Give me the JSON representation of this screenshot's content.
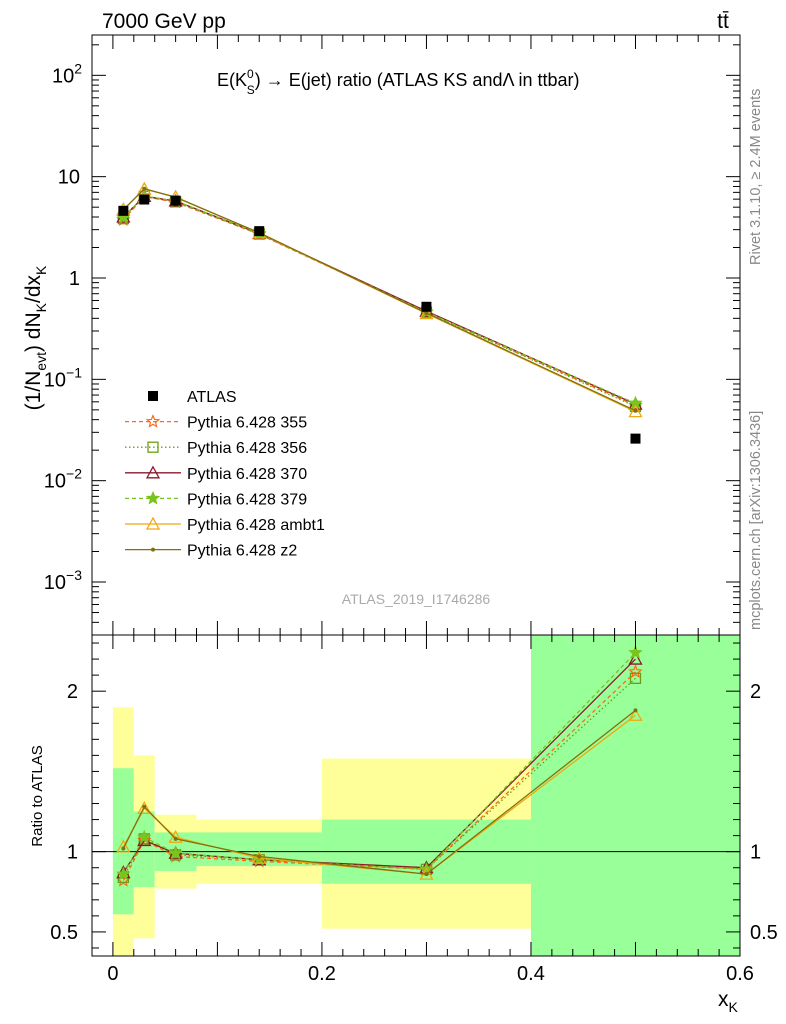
{
  "header": {
    "energy": "7000 GeV pp",
    "process": "tt̄"
  },
  "side_labels": {
    "rivet": "Rivet 3.1.10, ≥ 2.4M events",
    "mcplots": "mcplots.cern.ch [arXiv:1306.3436]"
  },
  "chart_data": [
    {
      "type": "line",
      "title": "E(K⁰S) → E(jet) ratio (ATLAS KS andΛ in ttbar)",
      "title_parts": {
        "main": "E(K",
        "sup": "0",
        "sub": "S",
        "rest": ") → E(jet) ratio (ATLAS KS andΛ in ttbar)"
      },
      "ylabel": "(1/Nevt) dNK/dxK",
      "ylabel_parts": {
        "a": "(1/N",
        "a_sub": "evt",
        "b": ") dN",
        "b_sub": "K",
        "c": "/dx",
        "c_sub": "K"
      },
      "yscale": "log",
      "xlim": [
        -0.02,
        0.6
      ],
      "ylim": [
        0.0003,
        250
      ],
      "y_ticks": [
        {
          "value": 0.001,
          "base": "10",
          "exp": "−3"
        },
        {
          "value": 0.01,
          "base": "10",
          "exp": "−2"
        },
        {
          "value": 0.1,
          "base": "10",
          "exp": "−1"
        },
        {
          "value": 1,
          "base": "1",
          "exp": ""
        },
        {
          "value": 10,
          "base": "10",
          "exp": ""
        },
        {
          "value": 100,
          "base": "10",
          "exp": "2"
        }
      ],
      "watermark": "ATLAS_2019_I1746286",
      "legend_position": "middle-left",
      "x": [
        0.01,
        0.03,
        0.06,
        0.14,
        0.3,
        0.5
      ],
      "data_series": {
        "name": "ATLAS",
        "values": [
          4.6,
          5.95,
          5.8,
          2.9,
          0.52,
          0.026
        ],
        "color": "#000000"
      },
      "series": [
        {
          "name": "Pythia 6.428 355",
          "values": [
            3.75,
            6.35,
            5.6,
            2.7,
            0.46,
            0.055
          ],
          "color": "#ff6a16",
          "dash": "4,3",
          "marker": "star-open"
        },
        {
          "name": "Pythia 6.428 356",
          "values": [
            3.85,
            6.4,
            5.65,
            2.72,
            0.46,
            0.054
          ],
          "color": "#6b9e14",
          "dash": "1.5,2.5",
          "marker": "square-open"
        },
        {
          "name": "Pythia 6.428 370",
          "values": [
            4.0,
            6.4,
            5.75,
            2.75,
            0.47,
            0.057
          ],
          "color": "#8b1a2a",
          "dash": "",
          "marker": "triangle-open"
        },
        {
          "name": "Pythia 6.428 379",
          "values": [
            3.95,
            6.45,
            5.75,
            2.75,
            0.46,
            0.058
          ],
          "color": "#7ac41e",
          "dash": "4,3",
          "marker": "star"
        },
        {
          "name": "Pythia 6.428 ambt1",
          "values": [
            4.75,
            7.55,
            6.3,
            2.78,
            0.445,
            0.048
          ],
          "color": "#f0a811",
          "dash": "",
          "marker": "triangle-open"
        },
        {
          "name": "Pythia 6.428 z2",
          "values": [
            4.7,
            7.6,
            6.25,
            2.8,
            0.45,
            0.049
          ],
          "color": "#807010",
          "dash": "",
          "marker": "dot"
        }
      ]
    },
    {
      "type": "line",
      "ylabel": "Ratio to ATLAS",
      "xlabel": "xK",
      "xlabel_parts": {
        "main": "x",
        "sub": "K"
      },
      "xlim": [
        -0.02,
        0.6
      ],
      "ylim": [
        0.35,
        2.35
      ],
      "x_ticks": [
        {
          "value": 0,
          "label": "0"
        },
        {
          "value": 0.2,
          "label": "0.2"
        },
        {
          "value": 0.4,
          "label": "0.4"
        },
        {
          "value": 0.6,
          "label": "0.6"
        }
      ],
      "y_ticks": [
        {
          "value": 0.5,
          "label": "0.5"
        },
        {
          "value": 1,
          "label": "1"
        },
        {
          "value": 2,
          "label": "2"
        }
      ],
      "uncertainty_bands": [
        {
          "x0": 0.0,
          "x1": 0.02,
          "stat_lo": 0.61,
          "stat_hi": 1.52,
          "tot_lo": 0.0,
          "tot_hi": 1.9
        },
        {
          "x0": 0.02,
          "x1": 0.04,
          "stat_lo": 0.78,
          "stat_hi": 1.25,
          "tot_lo": 0.46,
          "tot_hi": 1.6
        },
        {
          "x0": 0.04,
          "x1": 0.08,
          "stat_lo": 0.88,
          "stat_hi": 1.12,
          "tot_lo": 0.77,
          "tot_hi": 1.23
        },
        {
          "x0": 0.08,
          "x1": 0.2,
          "stat_lo": 0.91,
          "stat_hi": 1.12,
          "tot_lo": 0.8,
          "tot_hi": 1.2
        },
        {
          "x0": 0.2,
          "x1": 0.4,
          "stat_lo": 0.8,
          "stat_hi": 1.2,
          "tot_lo": 0.52,
          "tot_hi": 1.58
        },
        {
          "x0": 0.4,
          "x1": 0.6,
          "stat_lo": 0.0,
          "stat_hi": 5.0,
          "tot_lo": 0.0,
          "tot_hi": 5.0
        }
      ],
      "x": [
        0.01,
        0.03,
        0.06,
        0.14,
        0.3,
        0.5
      ],
      "series": [
        {
          "name": "Pythia 6.428 355",
          "values": [
            0.82,
            1.07,
            0.97,
            0.94,
            0.89,
            2.12
          ]
        },
        {
          "name": "Pythia 6.428 356",
          "values": [
            0.84,
            1.08,
            0.98,
            0.95,
            0.89,
            2.08
          ]
        },
        {
          "name": "Pythia 6.428 370",
          "values": [
            0.87,
            1.07,
            0.99,
            0.95,
            0.9,
            2.2
          ]
        },
        {
          "name": "Pythia 6.428 379",
          "values": [
            0.86,
            1.09,
            0.99,
            0.95,
            0.89,
            2.24
          ]
        },
        {
          "name": "Pythia 6.428 ambt1",
          "values": [
            1.03,
            1.27,
            1.09,
            0.96,
            0.86,
            1.85
          ]
        },
        {
          "name": "Pythia 6.428 z2",
          "values": [
            1.02,
            1.28,
            1.08,
            0.97,
            0.86,
            1.88
          ]
        }
      ]
    }
  ]
}
